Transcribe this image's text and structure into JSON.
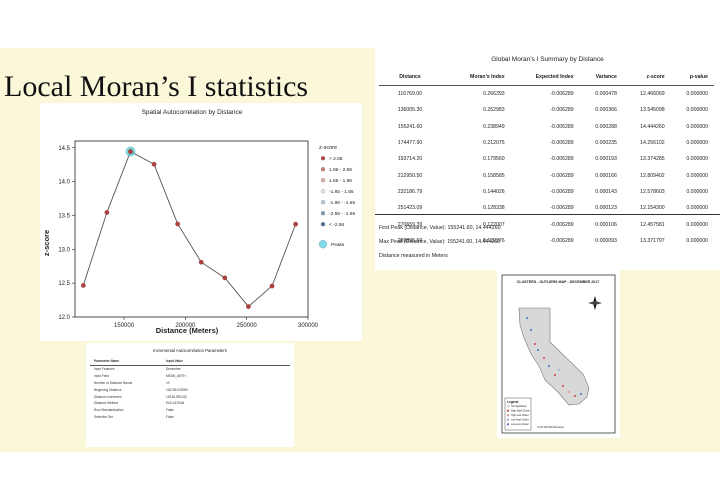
{
  "slide": {
    "title": "Local Moran’s I statistics"
  },
  "chart_data": {
    "type": "line",
    "title": "Spatial Autocorrelation by Distance",
    "xlabel": "Distance (Meters)",
    "ylabel": "z-score",
    "x": [
      116769,
      136005.3,
      155241.6,
      174477.9,
      193714.2,
      212950.5,
      232186.79,
      251423.09,
      270659.39,
      289895.69
    ],
    "y": [
      12.466069,
      13.545098,
      14.44426,
      14.256102,
      13.374285,
      12.809402,
      12.578603,
      12.1543,
      12.457581,
      13.371797
    ],
    "peak_index": 2,
    "xlim": [
      110000,
      300000
    ],
    "ylim": [
      12.0,
      14.6
    ],
    "xticks": [
      150000,
      200000,
      250000,
      300000
    ],
    "xtick_labels": [
      "150000",
      "200000",
      "250000",
      "300000"
    ],
    "yticks": [
      12.0,
      12.5,
      13.0,
      13.5,
      14.0,
      14.5
    ],
    "ytick_labels": [
      "12.0",
      "12.5",
      "13.0",
      "13.5",
      "14.0",
      "14.5"
    ],
    "legend_title": "z-score",
    "legend": [
      {
        "label": "> 2.58",
        "color": "#b0413e"
      },
      {
        "label": "1.96 - 2.58",
        "color": "#c87c72"
      },
      {
        "label": "1.65 - 1.96",
        "color": "#dcb0a8"
      },
      {
        "label": "-1.65 - 1.65",
        "color": "#e6e6e6"
      },
      {
        "label": "-1.96 - -1.65",
        "color": "#b8c6d6"
      },
      {
        "label": "-2.58 - -1.96",
        "color": "#7f9ab8"
      },
      {
        "label": "< -2.58",
        "color": "#4a6d94"
      },
      {
        "label": "Peaks",
        "color": "#7fd9e8"
      }
    ],
    "legend_position": "right",
    "colors": {
      "line": "#555555",
      "point": "#b0413e",
      "peak": "#5bc6cf"
    }
  },
  "summary": {
    "title": "Global Moran’s I Summary by Distance",
    "columns": [
      "Distance",
      "Moran’s Index",
      "Expected Index",
      "Variance",
      "z-score",
      "p-value"
    ],
    "rows": [
      [
        "116769.00",
        "0.266393",
        "-0.006289",
        "0.000478",
        "12.466069",
        "0.000000"
      ],
      [
        "136005.30",
        "0.252983",
        "-0.006289",
        "0.000366",
        "13.545098",
        "0.000000"
      ],
      [
        "155241.60",
        "0.238949",
        "-0.006289",
        "0.000288",
        "14.444260",
        "0.000000"
      ],
      [
        "174477.90",
        "0.212075",
        "-0.006289",
        "0.000235",
        "14.256102",
        "0.000000"
      ],
      [
        "193714.20",
        "0.179560",
        "-0.006289",
        "0.000193",
        "13.374285",
        "0.000000"
      ],
      [
        "212950.50",
        "0.158585",
        "-0.006289",
        "0.000166",
        "12.809402",
        "0.000000"
      ],
      [
        "232186.79",
        "0.144026",
        "-0.006289",
        "0.000143",
        "12.578603",
        "0.000000"
      ],
      [
        "251423.09",
        "0.128338",
        "-0.006289",
        "0.000123",
        "12.154300",
        "0.000000"
      ],
      [
        "270659.39",
        "0.122007",
        "-0.006289",
        "0.000106",
        "12.457581",
        "0.000000"
      ],
      [
        "289895.69",
        "0.122376",
        "-0.006289",
        "0.000093",
        "13.371797",
        "0.000000"
      ]
    ],
    "first_peak": "First Peak (Distance, Value): 155241.60, 14.444260",
    "max_peak": "Max Peak (Distance, Value): 155241.60, 14.444260",
    "units_note": "Distance measured in Meters"
  },
  "params": {
    "title": "Incremental Autocorrelation Parameters",
    "columns": [
      "Parameter Name",
      "Input Value"
    ],
    "rows": [
      [
        "Input Features",
        "December"
      ],
      [
        "Input Field",
        "MEAN_ANTH"
      ],
      [
        "Number of Distance Bands",
        "10"
      ],
      [
        "Beginning Distance",
        "116769.000000"
      ],
      [
        "Distance Increment",
        "19236.299133"
      ],
      [
        "Distance Method",
        "EUCLIDEAN"
      ],
      [
        "Row Standardization",
        "False"
      ],
      [
        "Selection Set",
        "False"
      ]
    ]
  },
  "map": {
    "title": "CLUSTERS - OUTLIERS MAP - DECEMBER 2017",
    "legend_title": "Legend",
    "legend_items": [
      "Not Significant",
      "High-High Cluster",
      "High-Low Outlier",
      "Low-High Outlier",
      "Low-Low Cluster"
    ],
    "legend_colors": [
      "#eeeeee",
      "#d14040",
      "#e79a9a",
      "#9ab8e0",
      "#3c6fc4"
    ],
    "scale_label": "0   125   250       500 Kilometers"
  }
}
